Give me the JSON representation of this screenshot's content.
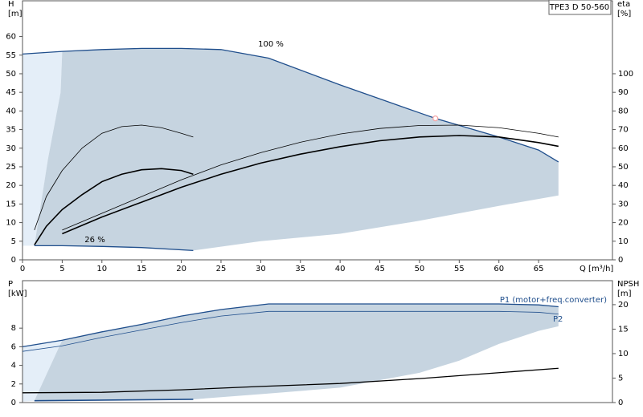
{
  "title": "TPE3 D 50-560",
  "chart_data": [
    {
      "type": "line",
      "ylabel": [
        "H",
        "[m]"
      ],
      "y2label": [
        "eta",
        "[%]"
      ],
      "xlabel": "Q [m³/h]",
      "xlim": [
        0,
        74.3
      ],
      "xticks": [
        0,
        5,
        10,
        15,
        20,
        25,
        30,
        35,
        40,
        45,
        50,
        55,
        60,
        65
      ],
      "ylim": [
        0,
        69.6
      ],
      "yticks": [
        0,
        5,
        10,
        15,
        20,
        25,
        30,
        35,
        40,
        45,
        50,
        55,
        60
      ],
      "y2lim": [
        0,
        139.2
      ],
      "y2ticks": [
        0,
        10,
        20,
        30,
        40,
        50,
        60,
        70,
        80,
        90,
        100
      ],
      "annotations": [
        "100 %",
        "26 %"
      ],
      "areas": [
        {
          "color": "#e4eef8",
          "x": [
            0,
            5,
            4.8,
            3.2,
            1.5,
            0
          ],
          "values": [
            55.3,
            56,
            45,
            27,
            3.8,
            3.8
          ]
        },
        {
          "color": "#c6d4e0",
          "x": [
            5,
            10,
            15,
            20,
            25,
            31,
            40,
            50,
            60,
            65,
            67.5,
            67.5,
            60,
            50,
            40,
            30,
            21.5,
            15,
            10,
            5,
            1.5,
            3.2,
            4.8
          ],
          "values": [
            56,
            56.5,
            56.8,
            56.8,
            56.5,
            54.2,
            47,
            39.5,
            33,
            29.5,
            26.3,
            17.3,
            14.5,
            10.5,
            7,
            5,
            2.5,
            3.3,
            3.6,
            3.8,
            3.8,
            27,
            45
          ]
        }
      ],
      "series": [
        {
          "color": "#1f4e8c",
          "width": 1.3,
          "x": [
            0,
            5,
            10,
            15,
            20,
            25,
            31,
            40,
            50,
            52,
            60,
            65,
            67.5
          ],
          "values": [
            55.3,
            56,
            56.5,
            56.8,
            56.8,
            56.5,
            54.2,
            47,
            39.5,
            38,
            33,
            29.5,
            26.3
          ]
        },
        {
          "color": "#1f4e8c",
          "width": 1.3,
          "x": [
            1.5,
            5,
            10,
            15,
            21.5
          ],
          "values": [
            3.8,
            3.8,
            3.6,
            3.3,
            2.5
          ]
        },
        {
          "color": "#000000",
          "width": 0.8,
          "axis": "y2",
          "x": [
            1.5,
            3,
            5,
            7.5,
            10,
            12.5,
            15,
            17.5,
            20,
            21.5
          ],
          "values": [
            16,
            34,
            48,
            60,
            68,
            71.6,
            72.4,
            71,
            68,
            66
          ]
        },
        {
          "color": "#000000",
          "width": 1.6,
          "axis": "y2",
          "x": [
            1.5,
            3,
            5,
            7.5,
            10,
            12.5,
            15,
            17.5,
            20,
            21.5
          ],
          "values": [
            8,
            18,
            27,
            35,
            42,
            46,
            48.4,
            49,
            48,
            46
          ]
        },
        {
          "color": "#000000",
          "width": 0.8,
          "axis": "y2",
          "x": [
            5,
            10,
            15,
            20,
            25,
            30,
            35,
            40,
            45,
            50,
            55,
            60,
            65,
            67.5
          ],
          "values": [
            16,
            25,
            34,
            43,
            51,
            57.6,
            63.2,
            67.6,
            70.6,
            72.2,
            72.4,
            71,
            68,
            66
          ]
        },
        {
          "color": "#000000",
          "width": 1.6,
          "axis": "y2",
          "x": [
            5,
            10,
            15,
            20,
            25,
            30,
            35,
            40,
            45,
            50,
            55,
            60,
            65,
            67.5
          ],
          "values": [
            14,
            23,
            31,
            39,
            46,
            52,
            56.8,
            60.8,
            64,
            66,
            66.8,
            66,
            63,
            61
          ]
        }
      ],
      "points": [
        {
          "x": 52,
          "y": 38,
          "color": "#f4a6a6"
        }
      ]
    },
    {
      "type": "line",
      "ylabel": [
        "P",
        "[kW]"
      ],
      "y2label": [
        "NPSH",
        "[m]"
      ],
      "xlim": [
        0,
        74.3
      ],
      "ylim": [
        0,
        13.1
      ],
      "yticks": [
        0,
        2,
        4,
        6,
        8
      ],
      "y2lim": [
        0,
        24.9
      ],
      "y2ticks": [
        0,
        5,
        10,
        15,
        20
      ],
      "areas": [
        {
          "color": "#e4eef8",
          "x": [
            0,
            5,
            3,
            1.5,
            0
          ],
          "values": [
            6.0,
            6.7,
            3,
            0.2,
            0.1
          ]
        },
        {
          "color": "#c6d4e0",
          "x": [
            5,
            10,
            15,
            20,
            25,
            31,
            40,
            50,
            60,
            65,
            67.5,
            67.5,
            65,
            60,
            55,
            50,
            40,
            30,
            21.5,
            1.5,
            3
          ],
          "values": [
            6.7,
            7.6,
            8.4,
            9.3,
            10.0,
            10.6,
            10.6,
            10.6,
            10.6,
            10.5,
            10.3,
            8.2,
            7.7,
            6.3,
            4.5,
            3.2,
            1.6,
            0.9,
            0.35,
            0.2,
            3
          ]
        }
      ],
      "series": [
        {
          "name": "P1 (motor+freq.converter)",
          "color": "#1f4e8c",
          "width": 1.3,
          "x": [
            0,
            5,
            10,
            15,
            20,
            25,
            31,
            40,
            50,
            60,
            65,
            67.5
          ],
          "values": [
            6.0,
            6.7,
            7.6,
            8.4,
            9.3,
            10.0,
            10.6,
            10.6,
            10.6,
            10.6,
            10.5,
            10.3
          ]
        },
        {
          "name": "P2",
          "color": "#1f4e8c",
          "width": 0.8,
          "x": [
            0,
            5,
            10,
            15,
            20,
            25,
            31,
            40,
            50,
            60,
            65,
            67.5
          ],
          "values": [
            5.5,
            6.1,
            7.0,
            7.8,
            8.6,
            9.3,
            9.8,
            9.8,
            9.8,
            9.8,
            9.7,
            9.5
          ]
        },
        {
          "color": "#1f4e8c",
          "width": 1.6,
          "x": [
            1.5,
            21.5
          ],
          "values": [
            0.2,
            0.35
          ]
        },
        {
          "color": "#000000",
          "width": 1.3,
          "axis": "y2",
          "x": [
            0,
            10,
            20,
            30,
            40,
            50,
            60,
            67.5
          ],
          "values": [
            2.0,
            2.1,
            2.6,
            3.3,
            3.9,
            4.9,
            6.1,
            7.0
          ]
        }
      ]
    }
  ]
}
